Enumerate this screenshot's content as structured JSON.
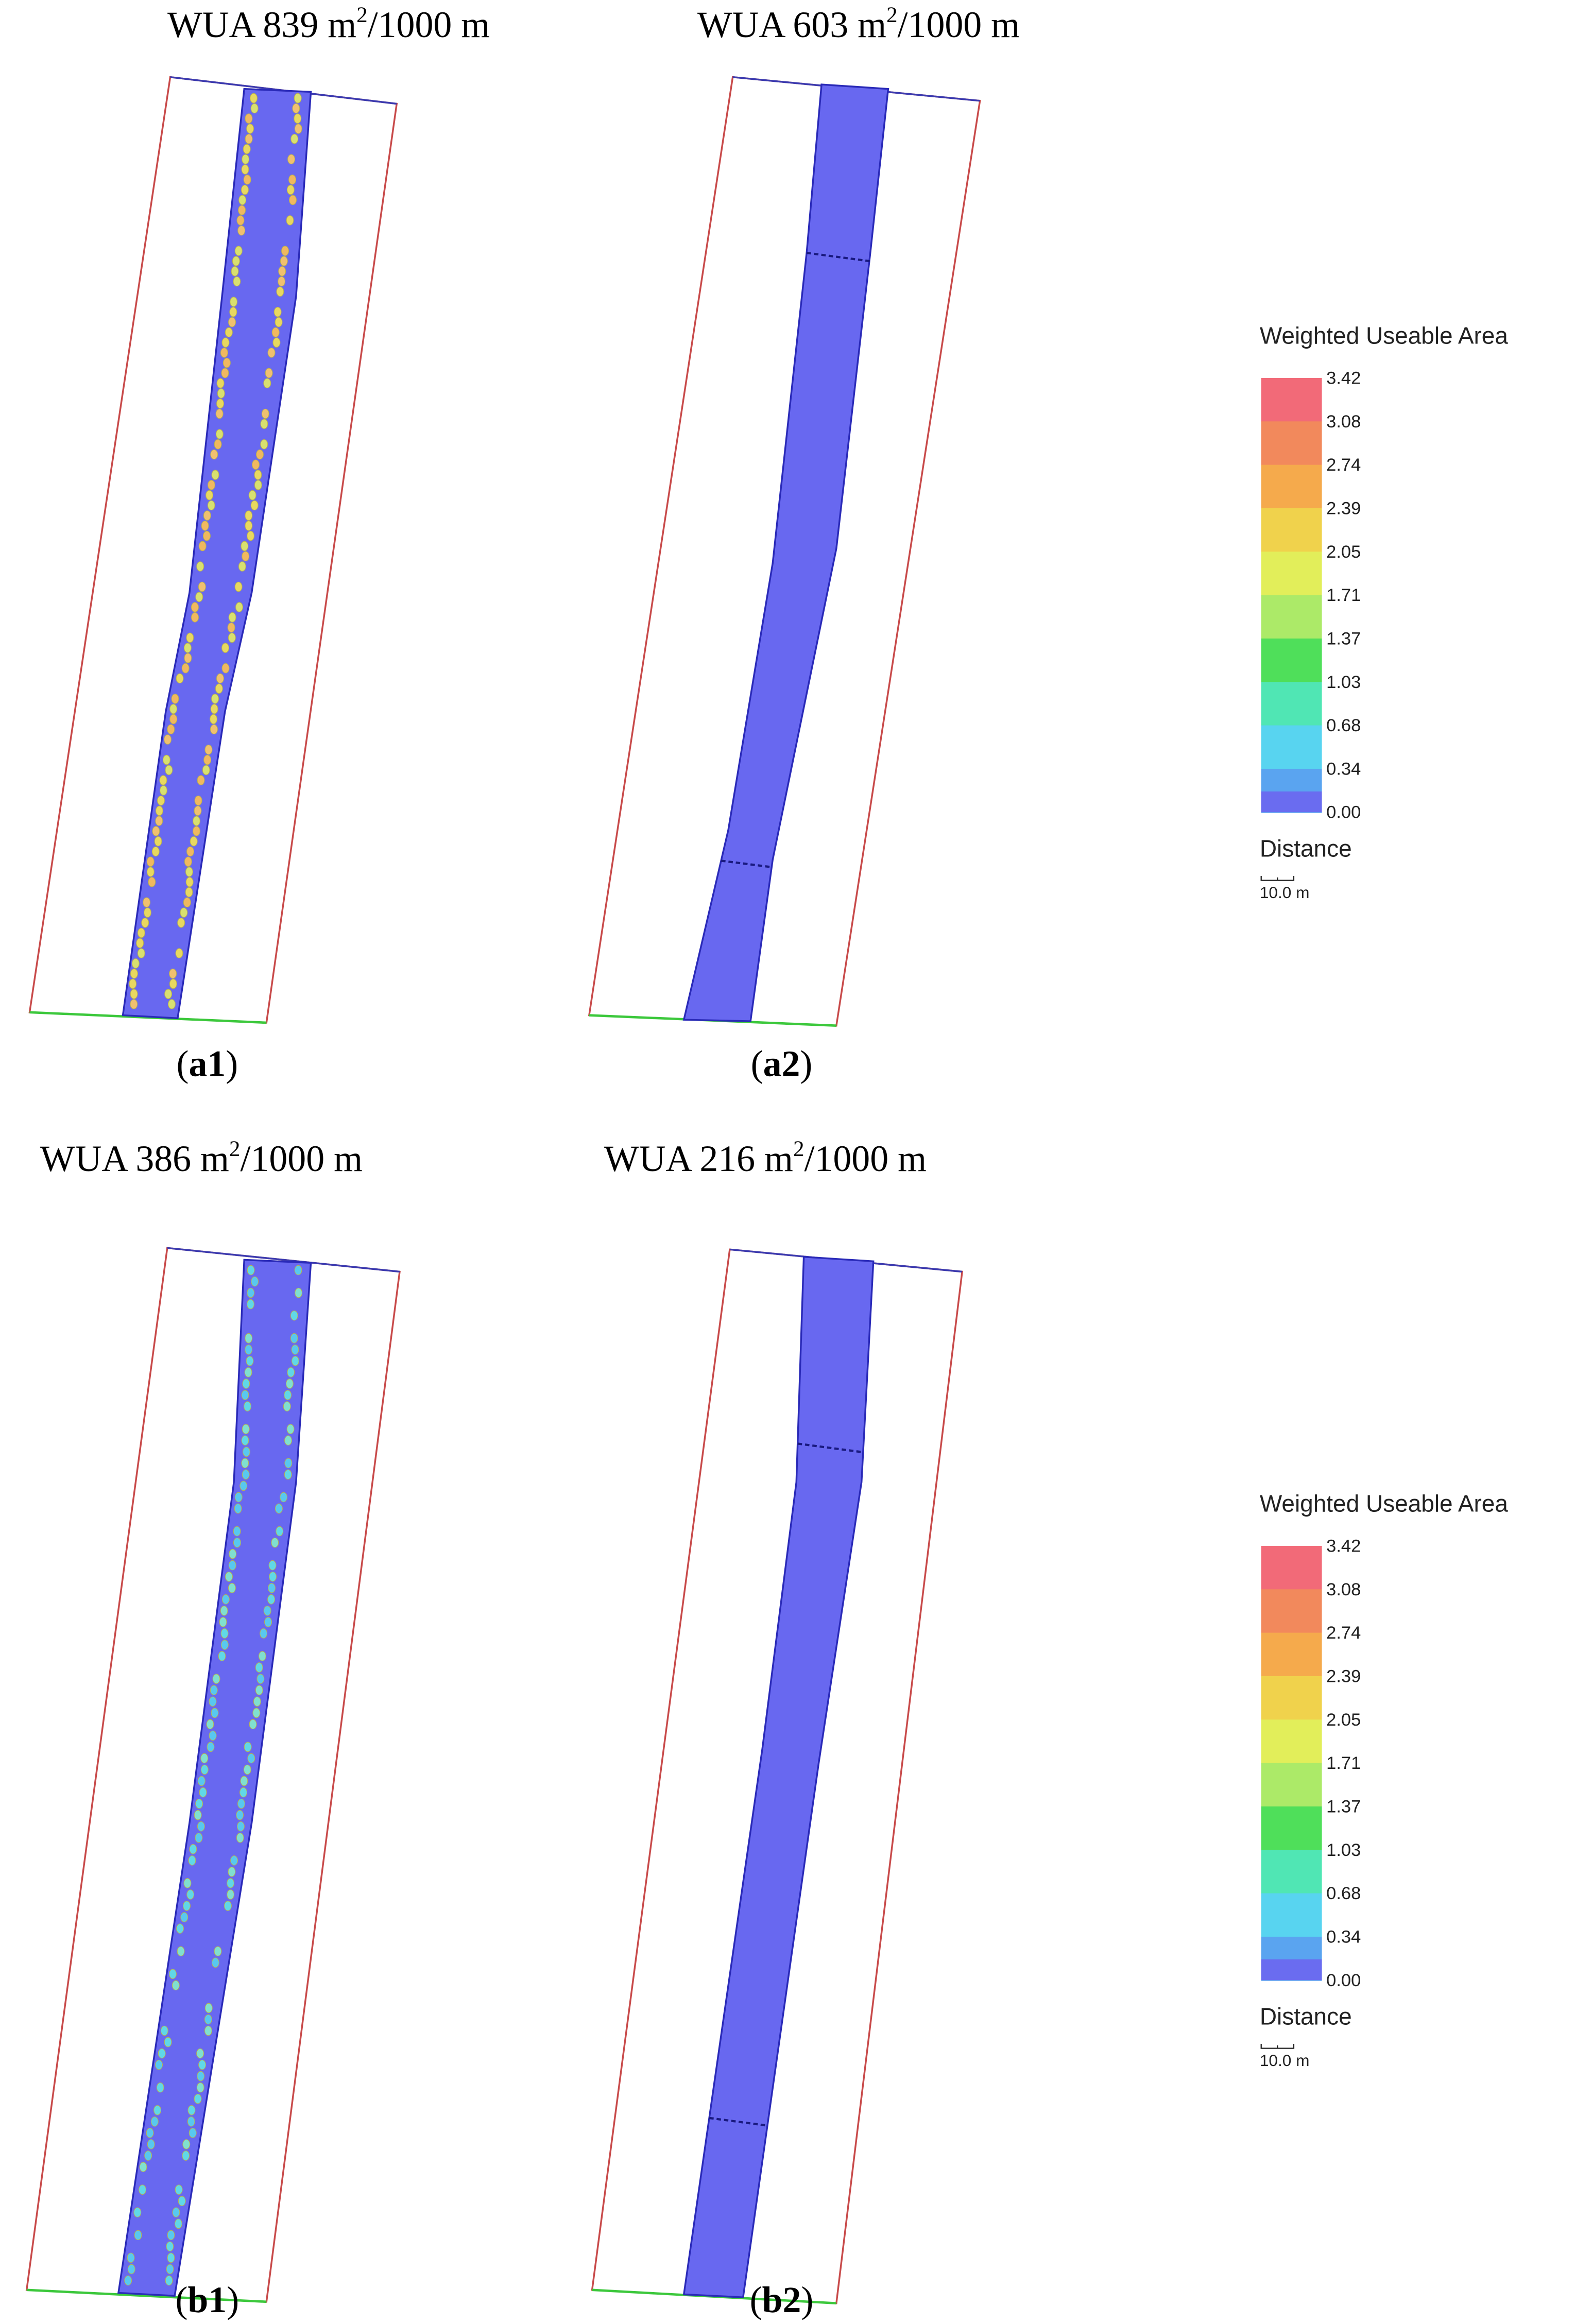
{
  "panels": [
    {
      "title": {
        "main": "WUA 839 m",
        "sup": "2",
        "rest": "/1000 m"
      },
      "caption": {
        "open": "(",
        "bold": "a1",
        "close": ")"
      }
    },
    {
      "title": {
        "main": "WUA 603 m",
        "sup": "2",
        "rest": "/1000 m"
      },
      "caption": {
        "open": "(",
        "bold": "a2",
        "close": ")"
      }
    },
    {
      "title": {
        "main": "WUA 386 m",
        "sup": "2",
        "rest": "/1000 m"
      },
      "caption": {
        "open": "(",
        "bold": "b1",
        "close": ")"
      }
    },
    {
      "title": {
        "main": "WUA 216 m",
        "sup": "2",
        "rest": "/1000 m"
      },
      "caption": {
        "open": "(",
        "bold": "b2",
        "close": ")"
      }
    }
  ],
  "legends": [
    {
      "title": "Weighted Useable Area",
      "ticks": [
        "3.42",
        "3.08",
        "2.74",
        "2.39",
        "2.05",
        "1.71",
        "1.37",
        "1.03",
        "0.68",
        "0.34",
        "0.00"
      ],
      "distance": "Distance",
      "scale": "10.0 m"
    },
    {
      "title": "Weighted Useable Area",
      "ticks": [
        "3.42",
        "3.08",
        "2.74",
        "2.39",
        "2.05",
        "1.71",
        "1.37",
        "1.03",
        "0.68",
        "0.34",
        "0.00"
      ],
      "distance": "Distance",
      "scale": "10.0 m"
    }
  ]
}
